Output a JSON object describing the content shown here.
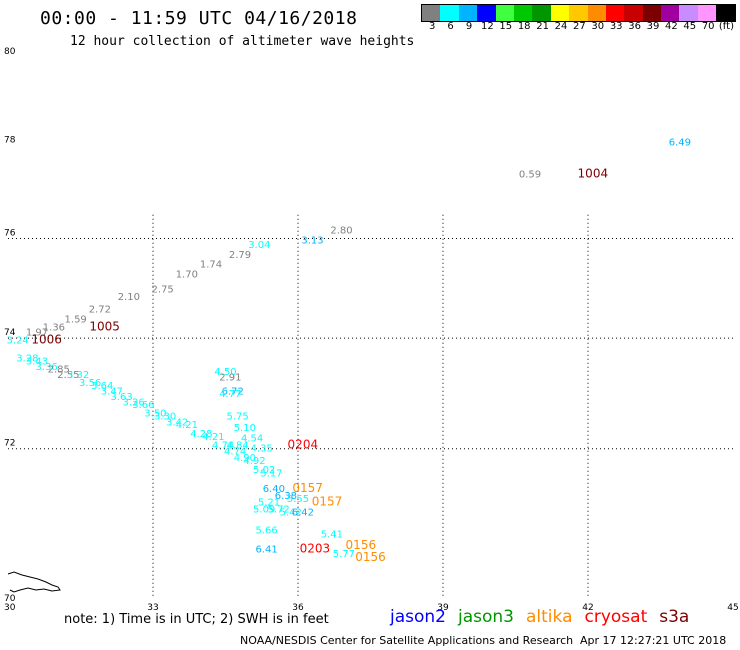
{
  "title": "00:00 - 11:59 UTC 04/16/2018",
  "subtitle": "12 hour collection of altimeter wave heights",
  "legend": {
    "unit": "(ft)",
    "bins": [
      {
        "label": "3",
        "color": "#808080"
      },
      {
        "label": "6",
        "color": "#00ffff"
      },
      {
        "label": "9",
        "color": "#00b4ff"
      },
      {
        "label": "12",
        "color": "#0000ff"
      },
      {
        "label": "15",
        "color": "#40ff40"
      },
      {
        "label": "18",
        "color": "#00c800"
      },
      {
        "label": "21",
        "color": "#009600"
      },
      {
        "label": "24",
        "color": "#ffff00"
      },
      {
        "label": "27",
        "color": "#ffc800"
      },
      {
        "label": "30",
        "color": "#ff8c00"
      },
      {
        "label": "33",
        "color": "#ff0000"
      },
      {
        "label": "36",
        "color": "#c80000"
      },
      {
        "label": "39",
        "color": "#7d0000"
      },
      {
        "label": "42",
        "color": "#a000a0"
      },
      {
        "label": "45",
        "color": "#c88cff"
      },
      {
        "label": "70",
        "color": "#ff96ff"
      },
      {
        "label": "",
        "color": "#000000"
      }
    ]
  },
  "axes": {
    "lon": {
      "min": 30,
      "max": 45,
      "ticks": [
        "30",
        "33",
        "36",
        "39",
        "42",
        "45"
      ]
    },
    "lat": {
      "min": 70,
      "max": 80,
      "ticks": [
        "70",
        "72",
        "74",
        "76",
        "78",
        "80"
      ]
    }
  },
  "satellites": [
    {
      "name": "jason2",
      "color": "#0000ff"
    },
    {
      "name": "jason3",
      "color": "#009600"
    },
    {
      "name": "altika",
      "color": "#ff8c00"
    },
    {
      "name": "cryosat",
      "color": "#ff0000"
    },
    {
      "name": "s3a",
      "color": "#7d0000"
    }
  ],
  "note": "note: 1) Time is in UTC; 2) SWH is in feet",
  "footer_left": "NOAA/NESDIS Center for Satellite Applications and Research",
  "footer_right": "Apr 17 12:27:21 UTC 2018",
  "observations": [
    {
      "lon": 43.9,
      "lat": 78.0,
      "text": "6.49",
      "color": "#00b4ff"
    },
    {
      "lon": 40.8,
      "lat": 77.3,
      "text": "0.59",
      "color": "#808080"
    },
    {
      "lon": 42.1,
      "lat": 77.3,
      "text": "1004",
      "color": "#7d0000"
    },
    {
      "lon": 36.9,
      "lat": 76.1,
      "text": "2.80",
      "color": "#808080"
    },
    {
      "lon": 36.3,
      "lat": 75.9,
      "text": "3.13",
      "color": "#00b4ff"
    },
    {
      "lon": 35.2,
      "lat": 75.8,
      "text": "3.04",
      "color": "#00ffff"
    },
    {
      "lon": 34.8,
      "lat": 75.6,
      "text": "2.79",
      "color": "#808080"
    },
    {
      "lon": 34.2,
      "lat": 75.4,
      "text": "1.74",
      "color": "#808080"
    },
    {
      "lon": 33.7,
      "lat": 75.2,
      "text": "1.70",
      "color": "#808080"
    },
    {
      "lon": 33.2,
      "lat": 74.9,
      "text": "2.75",
      "color": "#808080"
    },
    {
      "lon": 32.5,
      "lat": 74.75,
      "text": "2.10",
      "color": "#808080"
    },
    {
      "lon": 31.9,
      "lat": 74.5,
      "text": "2.72",
      "color": "#808080"
    },
    {
      "lon": 31.4,
      "lat": 74.3,
      "text": "1.59",
      "color": "#808080"
    },
    {
      "lon": 32.0,
      "lat": 74.15,
      "text": "1005",
      "color": "#7d0000"
    },
    {
      "lon": 30.95,
      "lat": 74.15,
      "text": "1.36",
      "color": "#808080"
    },
    {
      "lon": 30.6,
      "lat": 74.05,
      "text": "1.97",
      "color": "#808080"
    },
    {
      "lon": 30.8,
      "lat": 73.9,
      "text": "1006",
      "color": "#7d0000"
    },
    {
      "lon": 30.2,
      "lat": 73.9,
      "text": "3.24",
      "color": "#00ffff"
    },
    {
      "lon": 30.4,
      "lat": 73.55,
      "text": "3.28",
      "color": "#00ffff"
    },
    {
      "lon": 30.6,
      "lat": 73.5,
      "text": "3.43",
      "color": "#00ffff"
    },
    {
      "lon": 30.8,
      "lat": 73.4,
      "text": "3.36",
      "color": "#00ffff"
    },
    {
      "lon": 31.05,
      "lat": 73.35,
      "text": "2.85",
      "color": "#808080"
    },
    {
      "lon": 31.25,
      "lat": 73.25,
      "text": "2.55",
      "color": "#808080"
    },
    {
      "lon": 31.45,
      "lat": 73.25,
      "text": "3.32",
      "color": "#00ffff"
    },
    {
      "lon": 31.7,
      "lat": 73.1,
      "text": "3.56",
      "color": "#00ffff"
    },
    {
      "lon": 31.95,
      "lat": 73.05,
      "text": "3.64",
      "color": "#00ffff"
    },
    {
      "lon": 32.15,
      "lat": 72.95,
      "text": "3.47",
      "color": "#00ffff"
    },
    {
      "lon": 32.35,
      "lat": 72.85,
      "text": "3.63",
      "color": "#00ffff"
    },
    {
      "lon": 32.6,
      "lat": 72.75,
      "text": "3.26",
      "color": "#00ffff"
    },
    {
      "lon": 32.8,
      "lat": 72.7,
      "text": "3.66",
      "color": "#00ffff"
    },
    {
      "lon": 33.05,
      "lat": 72.55,
      "text": "3.50",
      "color": "#00ffff"
    },
    {
      "lon": 33.25,
      "lat": 72.5,
      "text": "3.30",
      "color": "#00ffff"
    },
    {
      "lon": 33.5,
      "lat": 72.4,
      "text": "3.42",
      "color": "#00ffff"
    },
    {
      "lon": 33.7,
      "lat": 72.35,
      "text": "4.21",
      "color": "#00ffff"
    },
    {
      "lon": 34.0,
      "lat": 72.2,
      "text": "4.28",
      "color": "#00ffff"
    },
    {
      "lon": 34.25,
      "lat": 72.15,
      "text": "4.21",
      "color": "#00ffff"
    },
    {
      "lon": 34.45,
      "lat": 72.0,
      "text": "4.74",
      "color": "#00ffff"
    },
    {
      "lon": 34.7,
      "lat": 71.9,
      "text": "4.74",
      "color": "#00ffff"
    },
    {
      "lon": 34.9,
      "lat": 71.8,
      "text": "4.90",
      "color": "#00ffff"
    },
    {
      "lon": 35.1,
      "lat": 71.75,
      "text": "4.92",
      "color": "#00ffff"
    },
    {
      "lon": 35.3,
      "lat": 71.6,
      "text": "5.02",
      "color": "#00ffff"
    },
    {
      "lon": 35.45,
      "lat": 71.55,
      "text": "5.17",
      "color": "#00ffff"
    },
    {
      "lon": 34.9,
      "lat": 72.3,
      "text": "5.10",
      "color": "#00ffff"
    },
    {
      "lon": 35.05,
      "lat": 72.12,
      "text": "4.54",
      "color": "#00ffff"
    },
    {
      "lon": 34.75,
      "lat": 72.0,
      "text": "4.84",
      "color": "#00ffff"
    },
    {
      "lon": 36.1,
      "lat": 72.0,
      "text": "0204",
      "color": "#ff0000"
    },
    {
      "lon": 34.65,
      "lat": 72.95,
      "text": "6.72",
      "color": "#00b4ff"
    },
    {
      "lon": 34.75,
      "lat": 72.5,
      "text": "5.75",
      "color": "#00ffff"
    },
    {
      "lon": 34.5,
      "lat": 73.3,
      "text": "4.50",
      "color": "#00ffff"
    },
    {
      "lon": 34.6,
      "lat": 73.2,
      "text": "2.91",
      "color": "#808080"
    },
    {
      "lon": 34.6,
      "lat": 72.9,
      "text": "4.77",
      "color": "#00ffff"
    },
    {
      "lon": 35.25,
      "lat": 71.95,
      "text": "4.35",
      "color": "#00ffff"
    },
    {
      "lon": 35.5,
      "lat": 71.3,
      "text": "6.40",
      "color": "#00b4ff"
    },
    {
      "lon": 35.75,
      "lat": 71.2,
      "text": "6.38",
      "color": "#00b4ff"
    },
    {
      "lon": 36.0,
      "lat": 71.15,
      "text": "5.55",
      "color": "#00ffff"
    },
    {
      "lon": 35.4,
      "lat": 71.1,
      "text": "5.21",
      "color": "#00ffff"
    },
    {
      "lon": 35.6,
      "lat": 71.0,
      "text": "5.72",
      "color": "#00ffff"
    },
    {
      "lon": 35.85,
      "lat": 70.95,
      "text": "5.42",
      "color": "#00ffff"
    },
    {
      "lon": 36.1,
      "lat": 70.95,
      "text": "6.42",
      "color": "#00b4ff"
    },
    {
      "lon": 35.3,
      "lat": 71.0,
      "text": "5.09",
      "color": "#00ffff"
    },
    {
      "lon": 36.2,
      "lat": 71.3,
      "text": "0157",
      "color": "#ff8c00"
    },
    {
      "lon": 36.6,
      "lat": 71.1,
      "text": "0157",
      "color": "#ff8c00"
    },
    {
      "lon": 35.35,
      "lat": 70.7,
      "text": "5.66",
      "color": "#00ffff"
    },
    {
      "lon": 35.35,
      "lat": 70.45,
      "text": "6.41",
      "color": "#00b4ff"
    },
    {
      "lon": 36.35,
      "lat": 70.45,
      "text": "0203",
      "color": "#ff0000"
    },
    {
      "lon": 36.7,
      "lat": 70.65,
      "text": "5.41",
      "color": "#00ffff"
    },
    {
      "lon": 36.95,
      "lat": 70.4,
      "text": "5.77",
      "color": "#00ffff"
    },
    {
      "lon": 37.3,
      "lat": 70.5,
      "text": "0156",
      "color": "#ff8c00"
    },
    {
      "lon": 37.5,
      "lat": 70.35,
      "text": "0156",
      "color": "#ff8c00"
    }
  ]
}
